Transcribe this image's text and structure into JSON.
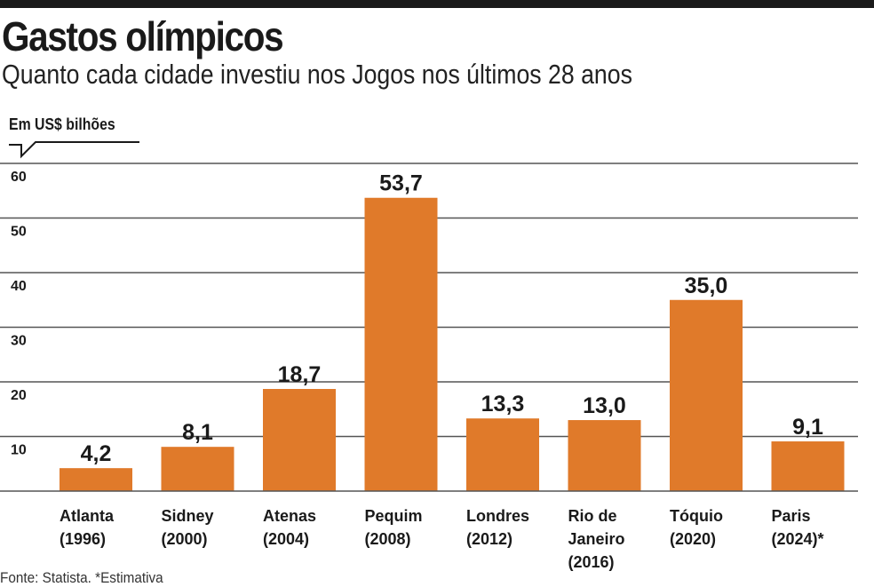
{
  "chart_data": {
    "type": "bar",
    "title": "Gastos olímpicos",
    "subtitle": "Quanto cada cidade investiu nos Jogos nos últimos 28 anos",
    "ylabel": "Em US$ bilhões",
    "categories": [
      [
        "Atlanta",
        "(1996)"
      ],
      [
        "Sidney",
        "(2000)"
      ],
      [
        "Atenas",
        "(2004)"
      ],
      [
        "Pequim",
        "(2008)"
      ],
      [
        "Londres",
        "(2012)"
      ],
      [
        "Rio de",
        "Janeiro",
        "(2016)"
      ],
      [
        "Tóquio",
        "(2020)"
      ],
      [
        "Paris",
        "(2024)*"
      ]
    ],
    "values": [
      4.2,
      8.1,
      18.7,
      53.7,
      13.3,
      13.0,
      35.0,
      9.1
    ],
    "value_labels": [
      "4,2",
      "8,1",
      "18,7",
      "53,7",
      "13,3",
      "13,0",
      "35,0",
      "9,1"
    ],
    "yticks": [
      10,
      20,
      30,
      40,
      50,
      60
    ],
    "ylim": [
      0,
      60
    ],
    "grid": true,
    "bar_color": "#e07a2a",
    "source": "Fonte: Statista. *Estimativa"
  }
}
